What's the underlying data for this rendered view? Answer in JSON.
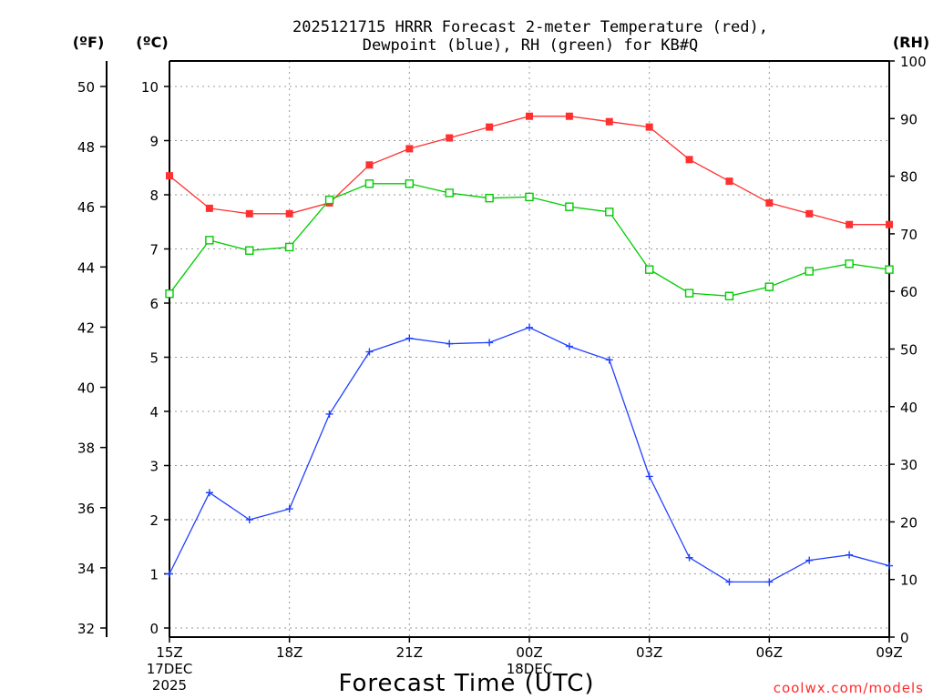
{
  "chart_data": {
    "type": "line",
    "title_line1": "2025121715 HRRR Forecast 2-meter Temperature (red),",
    "title_line2": "Dewpoint (blue), RH (green) for KB#Q",
    "xlabel": "Forecast Time (UTC)",
    "credit": "coolwx.com/models",
    "unit_labels": {
      "fahrenheit": "(ºF)",
      "celsius": "(ºC)",
      "rh": "(RH)"
    },
    "x_ticks": [
      {
        "index": 0,
        "label": "15Z",
        "sub1": "17DEC",
        "sub2": "2025"
      },
      {
        "index": 3,
        "label": "18Z",
        "sub1": "",
        "sub2": ""
      },
      {
        "index": 6,
        "label": "21Z",
        "sub1": "",
        "sub2": ""
      },
      {
        "index": 9,
        "label": "00Z",
        "sub1": "18DEC",
        "sub2": ""
      },
      {
        "index": 12,
        "label": "03Z",
        "sub1": "",
        "sub2": ""
      },
      {
        "index": 15,
        "label": "06Z",
        "sub1": "",
        "sub2": ""
      },
      {
        "index": 18,
        "label": "09Z",
        "sub1": "",
        "sub2": ""
      }
    ],
    "x_count": 19,
    "celsius_axis": {
      "min": 0,
      "max": 10.5,
      "ticks": [
        0,
        1,
        2,
        3,
        4,
        5,
        6,
        7,
        8,
        9,
        10
      ]
    },
    "fahrenheit_axis": {
      "ticks": [
        32,
        34,
        36,
        38,
        40,
        42,
        44,
        46,
        48,
        50
      ]
    },
    "rh_axis": {
      "min": 0,
      "max": 100,
      "ticks": [
        0,
        10,
        20,
        30,
        40,
        50,
        60,
        70,
        80,
        90,
        100
      ]
    },
    "series": [
      {
        "name": "Temperature",
        "unit": "C",
        "color": "#ff3030",
        "marker": "filled-square",
        "values": [
          8.35,
          7.75,
          7.65,
          7.65,
          7.85,
          8.55,
          8.85,
          9.05,
          9.25,
          9.45,
          9.45,
          9.35,
          9.25,
          8.65,
          8.25,
          7.85,
          7.65,
          7.45,
          7.45
        ]
      },
      {
        "name": "Dewpoint",
        "unit": "C",
        "color": "#2040ff",
        "marker": "plus",
        "values": [
          1.0,
          2.5,
          2.0,
          2.2,
          3.95,
          5.1,
          5.35,
          5.25,
          5.27,
          5.55,
          5.2,
          4.95,
          2.8,
          1.3,
          0.85,
          0.85,
          1.25,
          1.35,
          1.15
        ]
      },
      {
        "name": "RH",
        "unit": "%",
        "color": "#00cc00",
        "marker": "open-square",
        "values": [
          59.6,
          68.9,
          67.1,
          67.7,
          75.9,
          78.7,
          78.7,
          77.1,
          76.2,
          76.4,
          74.7,
          73.8,
          63.8,
          59.7,
          59.2,
          60.8,
          63.5,
          64.8,
          63.8
        ]
      }
    ]
  }
}
